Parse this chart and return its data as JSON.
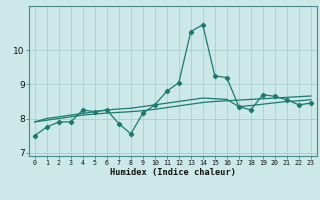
{
  "xlabel": "Humidex (Indice chaleur)",
  "x_values": [
    0,
    1,
    2,
    3,
    4,
    5,
    6,
    7,
    8,
    9,
    10,
    11,
    12,
    13,
    14,
    15,
    16,
    17,
    18,
    19,
    20,
    21,
    22,
    23
  ],
  "line1_y": [
    7.5,
    7.75,
    7.9,
    7.9,
    8.25,
    8.2,
    8.25,
    7.85,
    7.55,
    8.15,
    8.4,
    8.8,
    9.05,
    10.55,
    10.75,
    9.25,
    9.2,
    8.35,
    8.25,
    8.7,
    8.65,
    8.55,
    8.4,
    8.45
  ],
  "line2_y": [
    7.9,
    7.95,
    8.0,
    8.05,
    8.1,
    8.13,
    8.16,
    8.18,
    8.2,
    8.23,
    8.27,
    8.32,
    8.37,
    8.42,
    8.47,
    8.5,
    8.52,
    8.54,
    8.56,
    8.58,
    8.6,
    8.62,
    8.64,
    8.66
  ],
  "line3_y": [
    7.9,
    8.0,
    8.05,
    8.1,
    8.15,
    8.2,
    8.25,
    8.28,
    8.3,
    8.35,
    8.4,
    8.45,
    8.5,
    8.55,
    8.6,
    8.58,
    8.56,
    8.35,
    8.38,
    8.42,
    8.46,
    8.5,
    8.52,
    8.55
  ],
  "line_color": "#1a7a6e",
  "bg_color": "#cce8e8",
  "grid_color": "#aacfcf",
  "axis_color": "#4a8a8a",
  "ylim": [
    6.9,
    11.3
  ],
  "yticks": [
    7,
    8,
    9,
    10
  ],
  "xticks": [
    0,
    1,
    2,
    3,
    4,
    5,
    6,
    7,
    8,
    9,
    10,
    11,
    12,
    13,
    14,
    15,
    16,
    17,
    18,
    19,
    20,
    21,
    22,
    23
  ]
}
